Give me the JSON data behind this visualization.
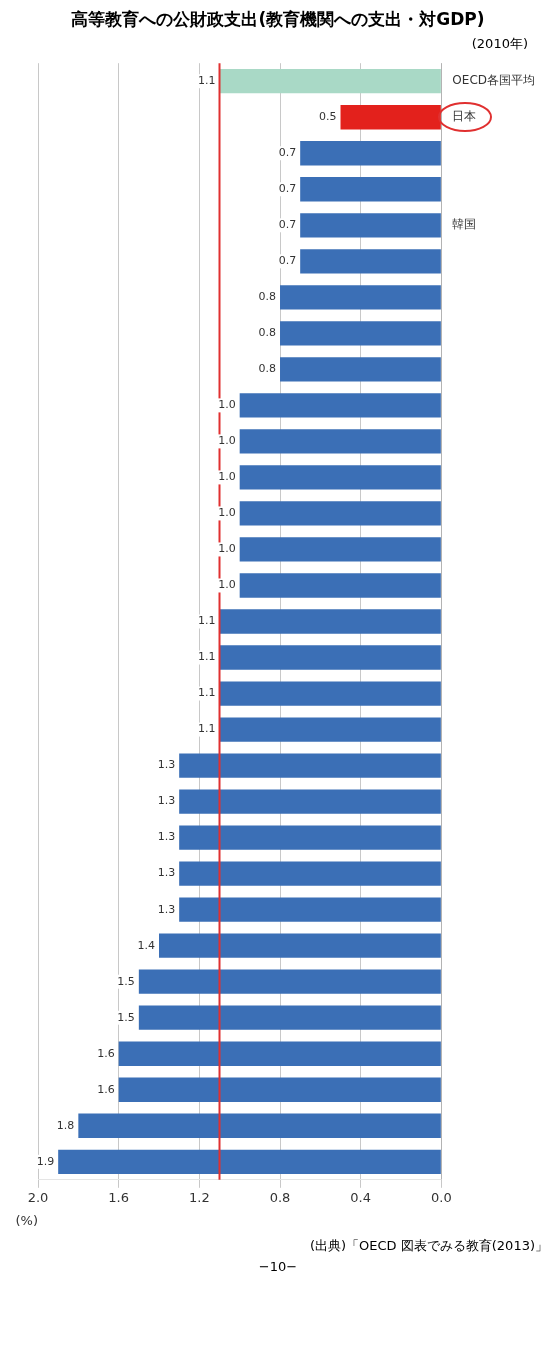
{
  "chart_data": {
    "type": "bar",
    "orientation": "horizontal",
    "title": "高等教育への公財政支出(教育機関への支出・対GDP)",
    "subtitle": "(2010年)",
    "xlabel": "(%)",
    "categories": [
      "OECD各国平均",
      "日本",
      null,
      null,
      "韓国",
      null,
      null,
      null,
      null,
      null,
      null,
      null,
      null,
      null,
      null,
      null,
      null,
      null,
      null,
      null,
      null,
      null,
      null,
      null,
      null,
      null,
      null,
      null,
      null,
      null,
      null
    ],
    "values": [
      1.1,
      0.5,
      0.7,
      0.7,
      0.7,
      0.7,
      0.8,
      0.8,
      0.8,
      1.0,
      1.0,
      1.0,
      1.0,
      1.0,
      1.0,
      1.1,
      1.1,
      1.1,
      1.1,
      1.3,
      1.3,
      1.3,
      1.3,
      1.3,
      1.4,
      1.5,
      1.5,
      1.6,
      1.6,
      1.8,
      1.9
    ],
    "colors": [
      "#a9d9c6",
      "#e3211c",
      "#3b6fb6",
      "#3b6fb6",
      "#3b6fb6",
      "#3b6fb6",
      "#3b6fb6",
      "#3b6fb6",
      "#3b6fb6",
      "#3b6fb6",
      "#3b6fb6",
      "#3b6fb6",
      "#3b6fb6",
      "#3b6fb6",
      "#3b6fb6",
      "#3b6fb6",
      "#3b6fb6",
      "#3b6fb6",
      "#3b6fb6",
      "#3b6fb6",
      "#3b6fb6",
      "#3b6fb6",
      "#3b6fb6",
      "#3b6fb6",
      "#3b6fb6",
      "#3b6fb6",
      "#3b6fb6",
      "#3b6fb6",
      "#3b6fb6",
      "#3b6fb6",
      "#3b6fb6"
    ],
    "xlim": [
      2.0,
      0.0
    ],
    "xticks": [
      {
        "value": 2.0,
        "label": "2.0"
      },
      {
        "value": 1.6,
        "label": "1.6"
      },
      {
        "value": 1.2,
        "label": "1.2"
      },
      {
        "value": 0.8,
        "label": "0.8"
      },
      {
        "value": 0.4,
        "label": "0.4"
      },
      {
        "value": 0,
        "label": "0.0"
      }
    ],
    "value_labels": [
      "1.1",
      "0.5",
      "0.7",
      "0.7",
      "0.7",
      "0.7",
      "0.8",
      "0.8",
      "0.8",
      "1.0",
      "1.0",
      "1.0",
      "1.0",
      "1.0",
      "1.0",
      "1.1",
      "1.1",
      "1.1",
      "1.1",
      "1.3",
      "1.3",
      "1.3",
      "1.3",
      "1.3",
      "1.4",
      "1.5",
      "1.5",
      "1.6",
      "1.6",
      "1.8",
      "1.9"
    ],
    "grid": "x",
    "legend": false,
    "ref_lines": [
      {
        "axis": "x",
        "value": 1.1,
        "color": "#e03030"
      }
    ],
    "annotations": [
      "(出典)「OECD 図表でみる教育(2013)」",
      "−10−"
    ]
  }
}
